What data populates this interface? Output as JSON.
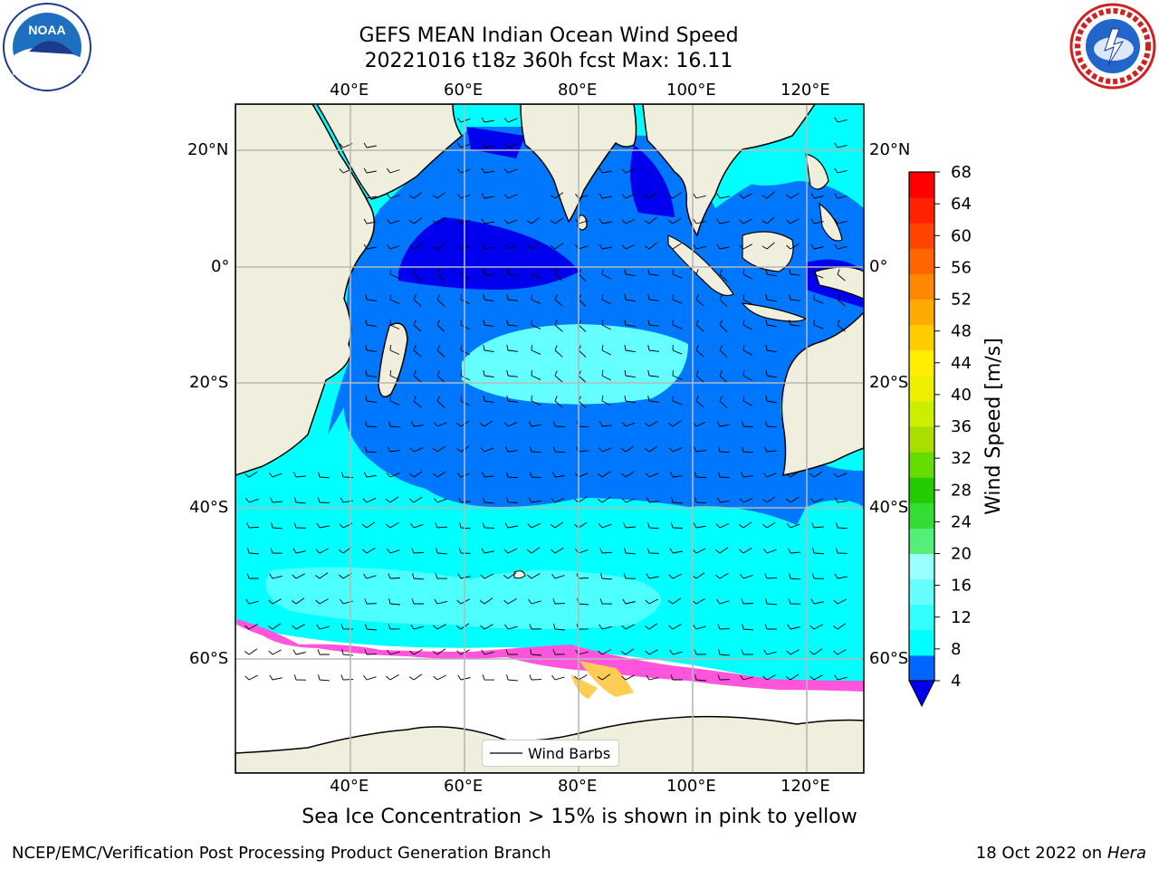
{
  "title_line1": "GEFS MEAN Indian Ocean Wind Speed",
  "title_line2": "20221016 t18z 360h fcst   Max: 16.11",
  "logos": {
    "left": "NOAA",
    "right": "NATIONAL WEATHER SERVICE"
  },
  "lon_labels": [
    "40°E",
    "60°E",
    "80°E",
    "100°E",
    "120°E"
  ],
  "lat_labels_left": [
    "20°N",
    "0°",
    "20°S",
    "40°S",
    "60°S"
  ],
  "lat_labels_right": [
    "20°N",
    "0°",
    "20°S",
    "40°S",
    "60°S"
  ],
  "legend": {
    "label": "Wind Barbs"
  },
  "colorbar": {
    "label": "Wind Speed [m/s]",
    "ticks": [
      "4",
      "8",
      "12",
      "16",
      "20",
      "24",
      "28",
      "32",
      "36",
      "40",
      "44",
      "48",
      "52",
      "56",
      "60",
      "64",
      "68"
    ],
    "colors": [
      "#0066ff",
      "#00ffff",
      "#33ffff",
      "#66ffff",
      "#99ffff",
      "#55ee77",
      "#33dd33",
      "#22cc00",
      "#66dd00",
      "#aadd00",
      "#ccee00",
      "#eeee00",
      "#ffee00",
      "#ffcc00",
      "#ffaa00",
      "#ff8800",
      "#ff6600",
      "#ff4400",
      "#ff2200",
      "#ff0000"
    ],
    "under_color": "#0000ee"
  },
  "caption": "Sea Ice Concentration > 15% is shown in pink to yellow",
  "footer_left": "NCEP/EMC/Verification Post Processing Product Generation Branch",
  "footer_right_prefix": "18 Oct 2022 on ",
  "footer_right_host": "Hera"
}
